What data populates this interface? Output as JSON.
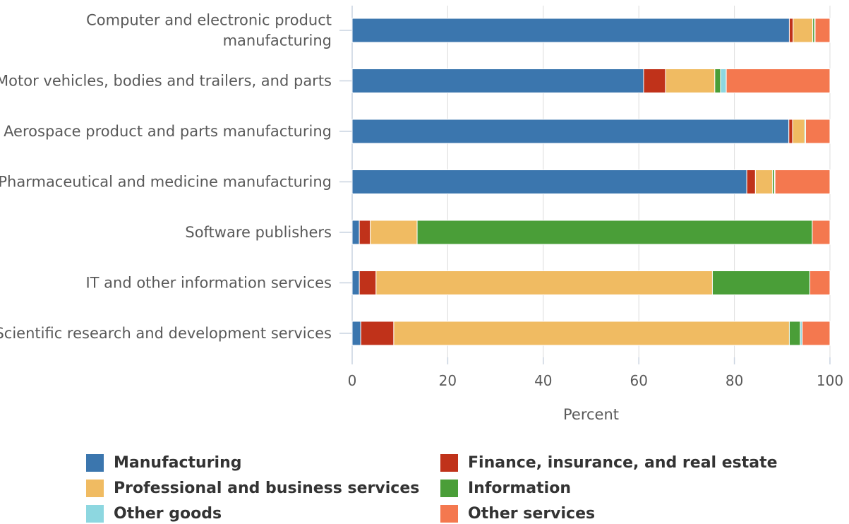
{
  "chart_data": {
    "type": "bar",
    "orientation": "horizontal",
    "stacked": true,
    "categories": [
      [
        "Computer and electronic product",
        "manufacturing"
      ],
      [
        "Motor vehicles, bodies and trailers, and parts"
      ],
      [
        "Aerospace product and parts manufacturing"
      ],
      [
        "Pharmaceutical and medicine manufacturing"
      ],
      [
        "Software publishers"
      ],
      [
        "IT and other information services"
      ],
      [
        "Scientific research and development services"
      ]
    ],
    "series": [
      {
        "name": "Manufacturing",
        "color": "#3b76ae",
        "values": [
          91.5,
          61,
          91.4,
          82.6,
          1.5,
          1.5,
          1.8
        ]
      },
      {
        "name": "Finance, insurance, and real estate",
        "color": "#c0321a",
        "values": [
          0.8,
          4.6,
          0.8,
          1.8,
          2.3,
          3.5,
          6.9
        ]
      },
      {
        "name": "Professional and business services",
        "color": "#f0bb62",
        "values": [
          4.1,
          10.3,
          2.5,
          3.6,
          9.8,
          70.4,
          82.8
        ]
      },
      {
        "name": "Information",
        "color": "#4a9e38",
        "values": [
          0.4,
          1.2,
          0.2,
          0.4,
          82.7,
          20.4,
          2.3
        ]
      },
      {
        "name": "Other goods",
        "color": "#8dd7e0",
        "values": [
          0.1,
          1.2,
          0,
          0.1,
          0,
          0,
          0.4
        ]
      },
      {
        "name": "Other services",
        "color": "#f4784f",
        "values": [
          3.1,
          21.7,
          5.1,
          11.5,
          3.7,
          4.2,
          5.8
        ]
      }
    ],
    "xlabel": "Percent",
    "ylabel": "",
    "xlim": [
      0,
      100
    ],
    "xticks": [
      0,
      20,
      40,
      60,
      80,
      100
    ],
    "grid": "vertical",
    "legend_position": "bottom"
  }
}
